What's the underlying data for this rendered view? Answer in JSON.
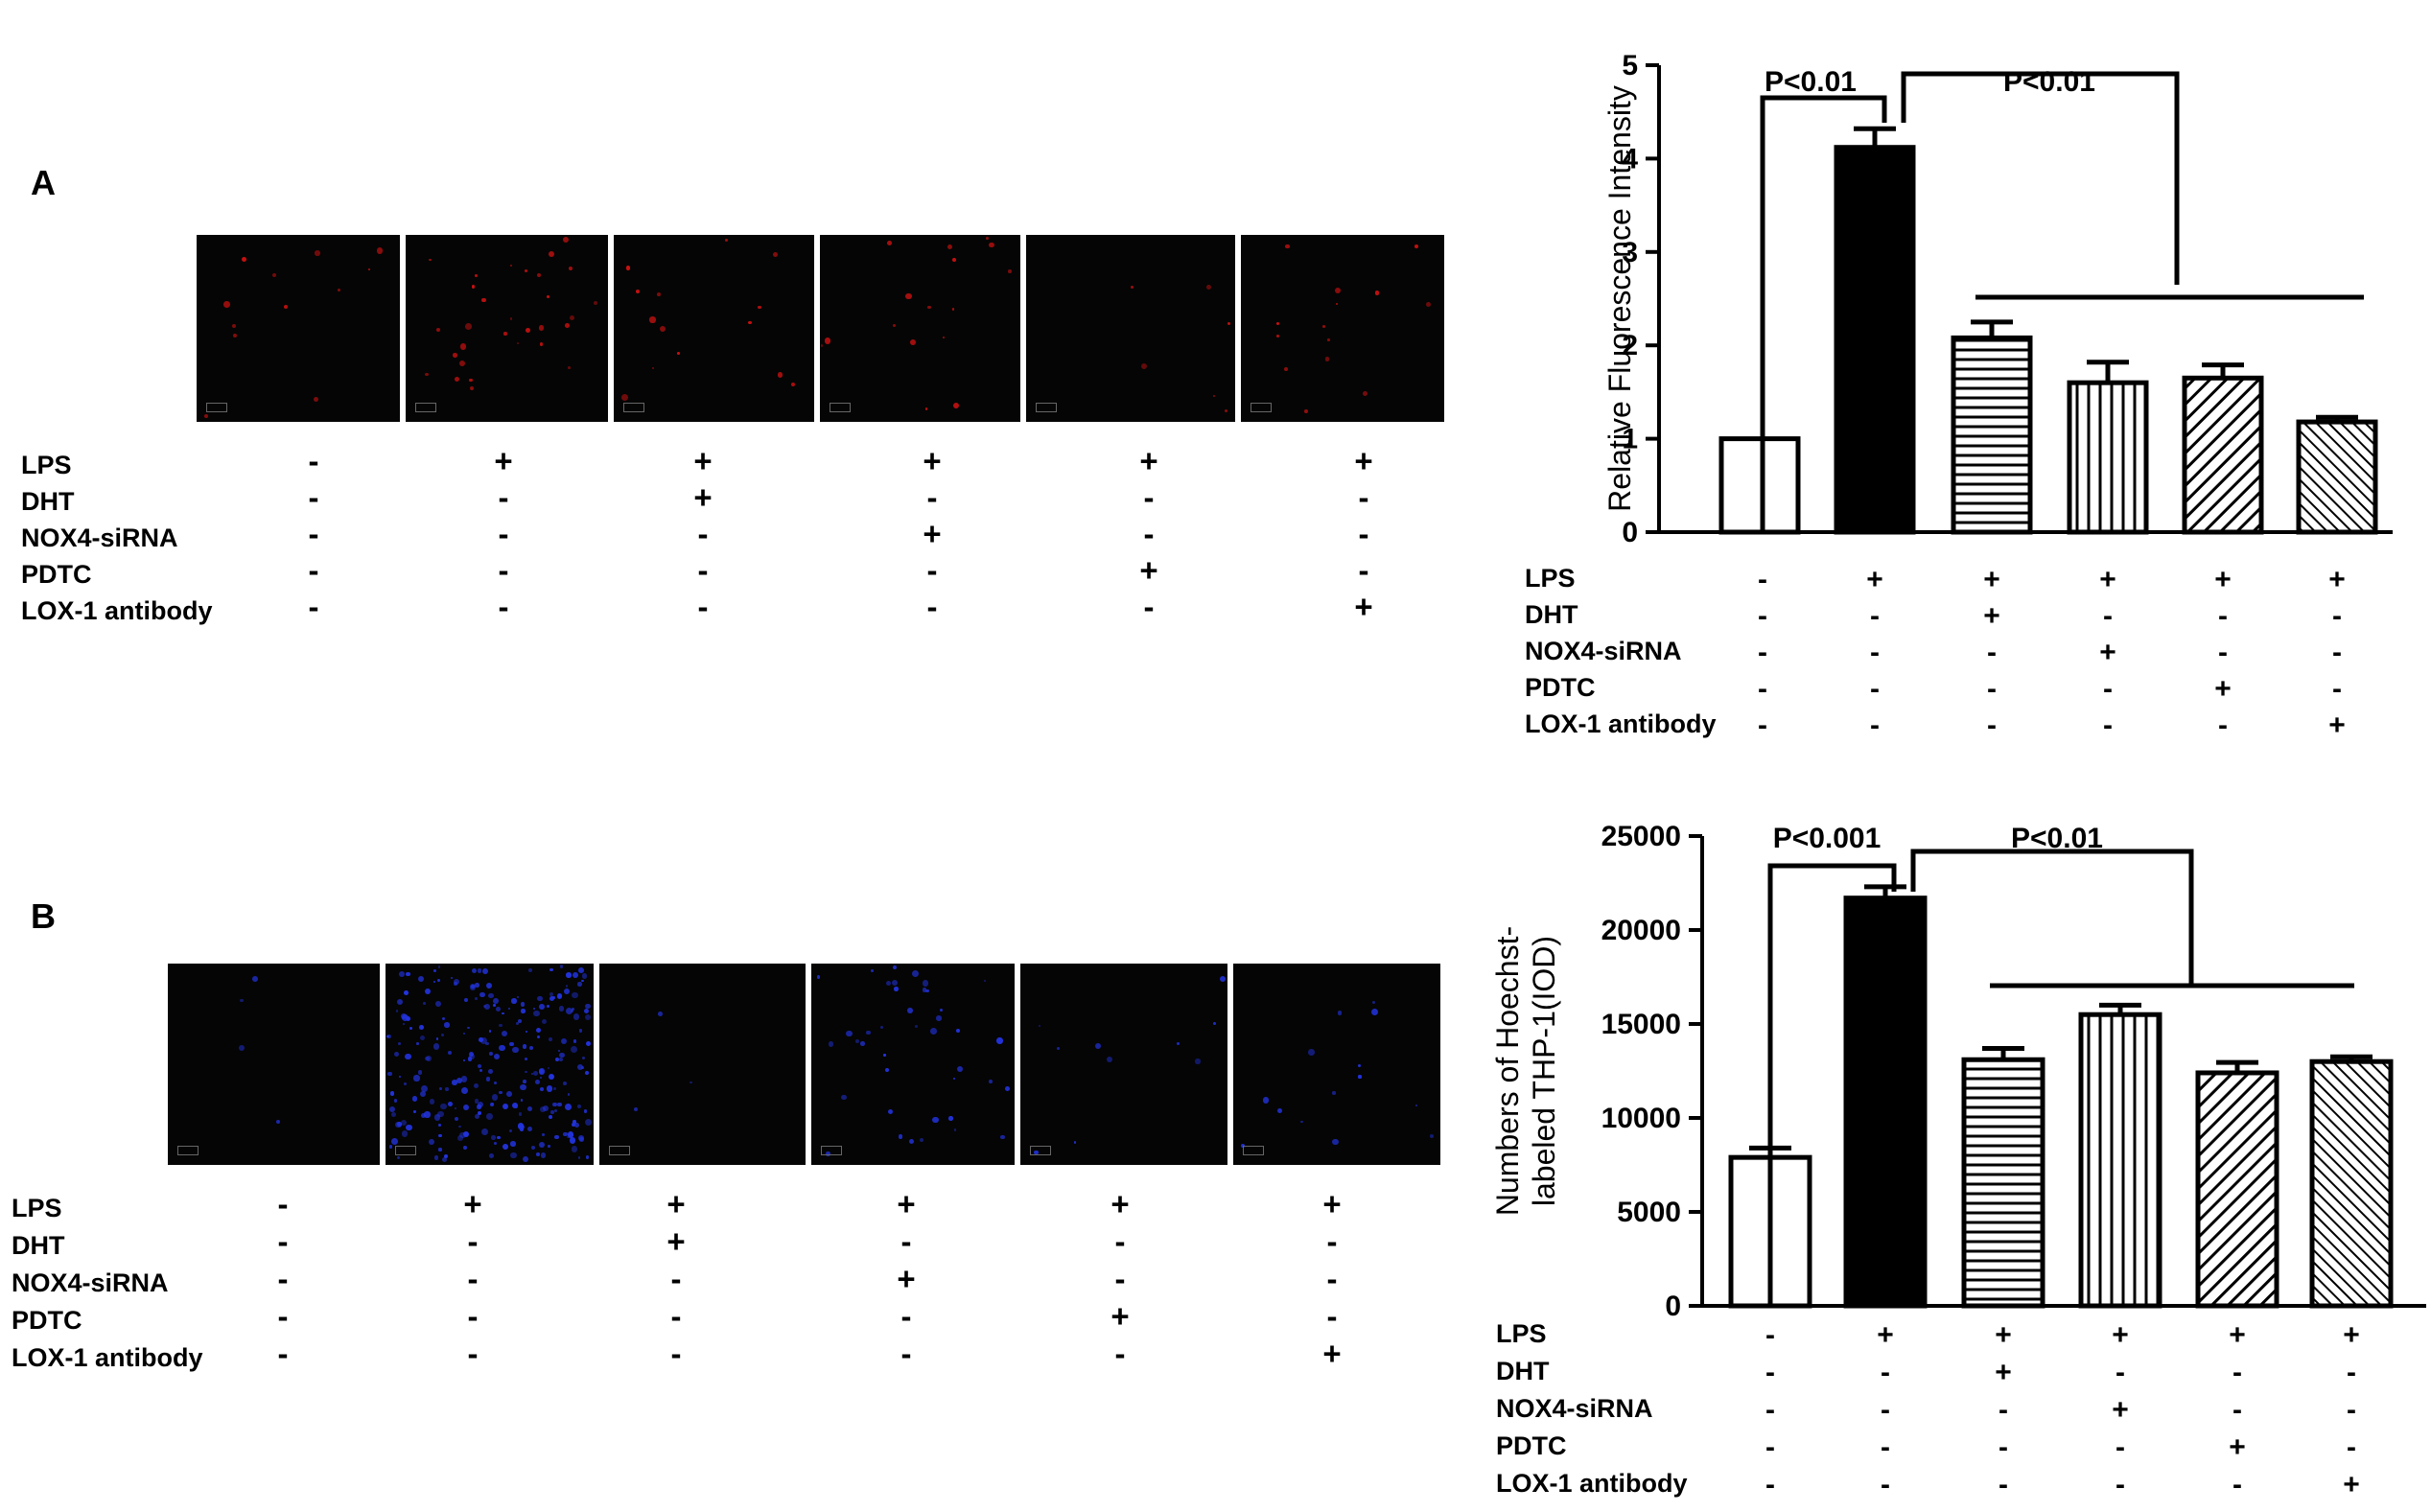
{
  "panels": [
    {
      "letter": "A",
      "image_color": "#cc1111",
      "image_count": 6,
      "treatments": [
        {
          "label": "LPS",
          "signs": [
            "-",
            "+",
            "+",
            "+",
            "+",
            "+"
          ]
        },
        {
          "label": "DHT",
          "signs": [
            "-",
            "-",
            "+",
            "-",
            "-",
            "-"
          ]
        },
        {
          "label": "NOX4-siRNA",
          "signs": [
            "-",
            "-",
            "-",
            "+",
            "-",
            "-"
          ]
        },
        {
          "label": "PDTC",
          "signs": [
            "-",
            "-",
            "-",
            "-",
            "+",
            "-"
          ]
        },
        {
          "label": "LOX-1 antibody",
          "signs": [
            "-",
            "-",
            "-",
            "-",
            "-",
            "+"
          ]
        }
      ]
    },
    {
      "letter": "B",
      "image_color": "#2233dd",
      "image_count": 6,
      "treatments": [
        {
          "label": "LPS",
          "signs": [
            "-",
            "+",
            "+",
            "+",
            "+",
            "+"
          ]
        },
        {
          "label": "DHT",
          "signs": [
            "-",
            "-",
            "+",
            "-",
            "-",
            "-"
          ]
        },
        {
          "label": "NOX4-siRNA",
          "signs": [
            "-",
            "-",
            "-",
            "+",
            "-",
            "-"
          ]
        },
        {
          "label": "PDTC",
          "signs": [
            "-",
            "-",
            "-",
            "-",
            "+",
            "-"
          ]
        },
        {
          "label": "LOX-1 antibody",
          "signs": [
            "-",
            "-",
            "-",
            "-",
            "-",
            "+"
          ]
        }
      ]
    }
  ],
  "chart_data": [
    {
      "type": "bar",
      "ylabel": "Relative Fluorescence Intensity",
      "ylim": [
        0,
        5
      ],
      "yticks": [
        "0",
        "1",
        "2",
        "3",
        "4",
        "5"
      ],
      "values": [
        1.0,
        4.12,
        2.08,
        1.6,
        1.65,
        1.18
      ],
      "errors": [
        0,
        0.2,
        0.17,
        0.22,
        0.14,
        0.05
      ],
      "fills": [
        "white",
        "black",
        "horizontal",
        "vertical",
        "diag",
        "diag-dense"
      ],
      "annotations": [
        "P<0.01",
        "P<0.01"
      ],
      "treatments": [
        {
          "label": "LPS",
          "signs": [
            "-",
            "+",
            "+",
            "+",
            "+",
            "+"
          ]
        },
        {
          "label": "DHT",
          "signs": [
            "-",
            "-",
            "+",
            "-",
            "-",
            "-"
          ]
        },
        {
          "label": "NOX4-siRNA",
          "signs": [
            "-",
            "-",
            "-",
            "+",
            "-",
            "-"
          ]
        },
        {
          "label": "PDTC",
          "signs": [
            "-",
            "-",
            "-",
            "-",
            "+",
            "-"
          ]
        },
        {
          "label": "LOX-1 antibody",
          "signs": [
            "-",
            "-",
            "-",
            "-",
            "-",
            "+"
          ]
        }
      ]
    },
    {
      "type": "bar",
      "ylabel": "Numbers of Hoechst-labeled THP-1(IOD)",
      "ylabel_lines": [
        "Numbers of Hoechst-",
        "labeled THP-1(IOD)"
      ],
      "ylim": [
        0,
        25000
      ],
      "yticks": [
        "0",
        "5000",
        "10000",
        "15000",
        "20000",
        "25000"
      ],
      "values": [
        7900,
        21700,
        13100,
        15500,
        12400,
        13000
      ],
      "errors": [
        500,
        600,
        600,
        500,
        550,
        250
      ],
      "fills": [
        "white",
        "black",
        "horizontal",
        "vertical",
        "diag",
        "diag-dense"
      ],
      "annotations": [
        "P<0.001",
        "P<0.01"
      ],
      "treatments": [
        {
          "label": "LPS",
          "signs": [
            "-",
            "+",
            "+",
            "+",
            "+",
            "+"
          ]
        },
        {
          "label": "DHT",
          "signs": [
            "-",
            "-",
            "+",
            "-",
            "-",
            "-"
          ]
        },
        {
          "label": "NOX4-siRNA",
          "signs": [
            "-",
            "-",
            "-",
            "+",
            "-",
            "-"
          ]
        },
        {
          "label": "PDTC",
          "signs": [
            "-",
            "-",
            "-",
            "-",
            "+",
            "-"
          ]
        },
        {
          "label": "LOX-1 antibody",
          "signs": [
            "-",
            "-",
            "-",
            "-",
            "-",
            "+"
          ]
        }
      ]
    }
  ]
}
